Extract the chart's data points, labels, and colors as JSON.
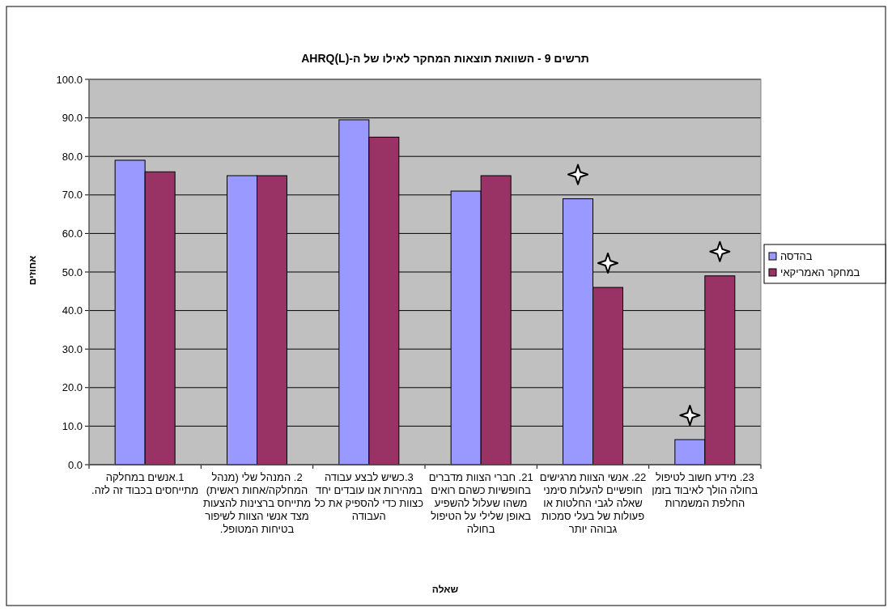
{
  "chart_data": {
    "type": "bar",
    "title": "תרשים 9 - השוואת תוצאות המחקר לאילו של ה-AHRQ(L)",
    "xlabel": "שאלה",
    "ylabel": "אחוזים",
    "categories": [
      "1.אנשים במחלקה מתייחסים בכבוד זה לזה.",
      "2. המנהל שלי (מנהל המחלקה/אחות ראשית) מתייחס ברצינות להצעות מצד אנשי הצוות לשיפור בטיחות המטופל.",
      "3.כשיש לבצע עבודה במהירות אנו עובדים יחד כצוות כדי להספיק את כל העבודה",
      "21. חברי הצוות מדברים בחופשיות כשהם רואים משהו שעלול להשפיע באופן שלילי על הטיפול בחולה",
      "22. אנשי הצוות מרגישים חופשיים להעלות סימני שאלה לגבי החלטות או פעולות של בעלי סמכות גבוהה יותר",
      "23. מידע חשוב לטיפול בחולה הולך לאיבוד בזמן החלפת המשמרות"
    ],
    "series": [
      {
        "name": "בהדסה",
        "color": "#9999ff",
        "values": [
          79,
          75,
          89.5,
          71,
          69,
          6.5
        ]
      },
      {
        "name": "במחקר האמריקאי",
        "color": "#993366",
        "values": [
          76,
          75,
          85,
          75,
          46,
          49
        ]
      }
    ],
    "ylim": [
      0,
      100
    ],
    "yticks": [
      {
        "value": 0,
        "label": "0.0"
      },
      {
        "value": 10,
        "label": "10.0"
      },
      {
        "value": 20,
        "label": "20.0"
      },
      {
        "value": 30,
        "label": "30.0"
      },
      {
        "value": 40,
        "label": "40.0"
      },
      {
        "value": 50,
        "label": "50.0"
      },
      {
        "value": 60,
        "label": "60.0"
      },
      {
        "value": 70,
        "label": "70.0"
      },
      {
        "value": 80,
        "label": "80.0"
      },
      {
        "value": 90,
        "label": "90.0"
      },
      {
        "value": 100,
        "label": "100.0"
      }
    ],
    "grid": "y",
    "legend": "right"
  }
}
